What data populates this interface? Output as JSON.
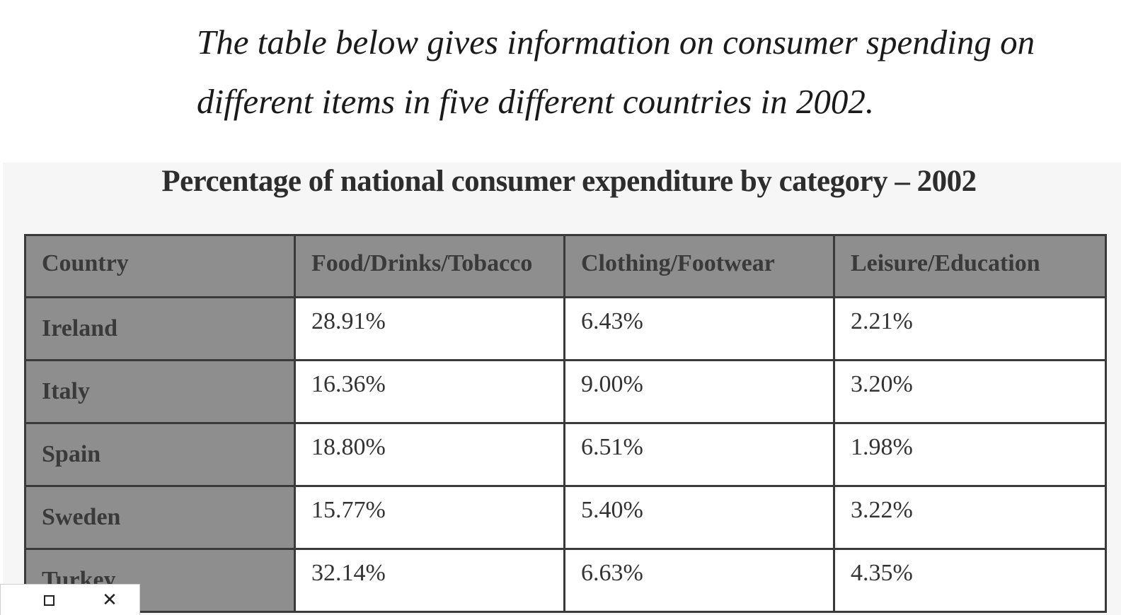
{
  "intro": {
    "line1": "The table below gives information on consumer spending on",
    "line2": "different items in five different countries in 2002."
  },
  "chart_data": {
    "type": "table",
    "title": "Percentage of national consumer expenditure by category – 2002",
    "columns": [
      "Country",
      "Food/Drinks/Tobacco",
      "Clothing/Footwear",
      "Leisure/Education"
    ],
    "rows": [
      {
        "country": "Ireland",
        "values": [
          "28.91%",
          "6.43%",
          "2.21%"
        ]
      },
      {
        "country": "Italy",
        "values": [
          "16.36%",
          "9.00%",
          "3.20%"
        ]
      },
      {
        "country": "Spain",
        "values": [
          "18.80%",
          "6.51%",
          "1.98%"
        ]
      },
      {
        "country": "Sweden",
        "values": [
          "15.77%",
          "5.40%",
          "3.22%"
        ]
      },
      {
        "country": "Turkey",
        "values": [
          "32.14%",
          "6.63%",
          "4.35%"
        ]
      }
    ],
    "header_color": "#8e8e8e",
    "cell_color": "#ffffff"
  },
  "window_controls": {
    "maximize_icon": "maximize-icon",
    "close_icon": "close-icon"
  }
}
